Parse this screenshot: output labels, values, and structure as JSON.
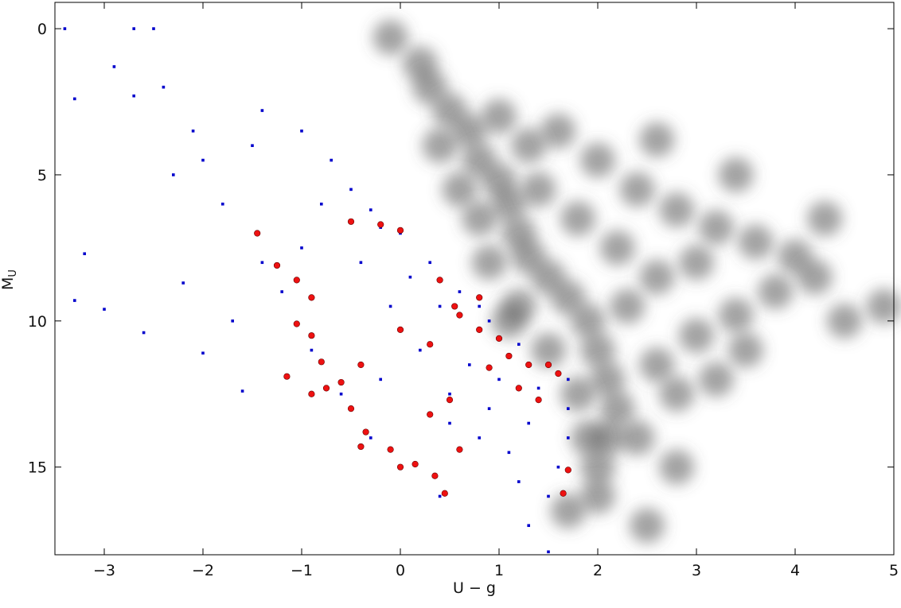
{
  "chart_data": {
    "type": "scatter",
    "xlabel": "U − g",
    "ylabel": "M",
    "ylabel_sub": "U",
    "xlim": [
      -3.5,
      5
    ],
    "ylim": [
      -0.9,
      18
    ],
    "y_inverted": true,
    "xticks": [
      {
        "value": -3,
        "label": "−3"
      },
      {
        "value": -2,
        "label": "−2"
      },
      {
        "value": -1,
        "label": "−1"
      },
      0,
      1,
      2,
      3,
      4,
      5
    ],
    "yticks": [
      0,
      5,
      10,
      15
    ],
    "series": [
      {
        "color": "#555555",
        "marker": "cloud",
        "x": [
          -0.1,
          0.2,
          0.3,
          0.5,
          0.7,
          0.8,
          1.0,
          1.1,
          1.2,
          1.3,
          1.5,
          1.7,
          1.9,
          2.0,
          2.1,
          2.2,
          2.1,
          2.0,
          2.0,
          1.6,
          2.0,
          2.4,
          2.8,
          3.2,
          3.6,
          4.0,
          4.2,
          3.8,
          3.4,
          3.0,
          2.6,
          2.8,
          2.4,
          1.4,
          1.8,
          2.2,
          2.6,
          3.0,
          0.6,
          0.9,
          1.2,
          1.5,
          1.8,
          1.9,
          0.4,
          1.0,
          1.3,
          2.6,
          3.4,
          4.3,
          4.5,
          4.9,
          3.2,
          2.8,
          1.7,
          2.5,
          1.1,
          0.8,
          2.3,
          3.5
        ],
        "y": [
          0.3,
          1.2,
          2,
          2.8,
          3.5,
          4.5,
          5.2,
          6,
          7,
          7.8,
          8.5,
          9.2,
          10,
          11,
          12,
          13,
          14,
          15,
          16,
          3.5,
          4.5,
          5.5,
          6.2,
          6.8,
          7.3,
          7.8,
          8.5,
          9,
          9.8,
          10.5,
          11.5,
          12.5,
          14,
          5.5,
          6.5,
          7.5,
          8.5,
          8,
          5.5,
          8,
          9.5,
          11,
          12.5,
          14,
          4,
          3,
          4,
          3.8,
          5,
          6.5,
          10,
          9.5,
          12,
          15,
          16.5,
          17,
          10,
          6.5,
          9.5,
          11
        ]
      },
      {
        "color": "#0000cc",
        "marker": "square",
        "x": [
          -0.7,
          -0.5,
          -0.3,
          0,
          0.3,
          0.6,
          0.9,
          1.2,
          1.5,
          1.7,
          1.7,
          1.7,
          1.6,
          1.5,
          1.2,
          0.8,
          0.5,
          0.2,
          -0.1,
          -0.4,
          1.0,
          1.3,
          0.7,
          0.4,
          -0.8,
          -1,
          -1.2,
          -0.9,
          -0.6,
          -0.3,
          0,
          0.4,
          -1.5,
          -2,
          -2.3,
          -1.8,
          -1.4,
          -2.1,
          -2.5,
          -2.7,
          -2.9,
          -2.7,
          -2.4,
          -3.3,
          -3.4,
          -3.2,
          -3.3,
          -3.0,
          -2.6,
          -2.2,
          -2.0,
          -1.7,
          -1.6,
          -0.2,
          0.9,
          1.3,
          1.5,
          0.5,
          1.1,
          -0.2,
          0.1,
          0.8,
          1.4,
          -1.4,
          -1.0
        ],
        "y": [
          4.5,
          5.5,
          6.2,
          7,
          8,
          9,
          10,
          10.8,
          11.5,
          12,
          13,
          14,
          15,
          16,
          15.5,
          14,
          12.5,
          11,
          9.5,
          8,
          12,
          13.5,
          11.5,
          9.5,
          6,
          7.5,
          9,
          11,
          12.5,
          14,
          15,
          16,
          4,
          4.5,
          5,
          6,
          8,
          3.5,
          0,
          0,
          1.3,
          2.3,
          2,
          2.4,
          0,
          7.7,
          9.3,
          9.6,
          10.4,
          8.7,
          11.1,
          10,
          12.4,
          12,
          13,
          17,
          17.9,
          13.5,
          14.5,
          6.8,
          8.5,
          9.5,
          12.3,
          2.8,
          3.5
        ]
      },
      {
        "color": "#ee1111",
        "marker": "circle",
        "x": [
          -1.45,
          -1.25,
          -1.05,
          -0.9,
          -1.05,
          -0.9,
          -0.8,
          -0.75,
          -0.9,
          -1.15,
          -0.6,
          -0.5,
          -0.35,
          -0.4,
          -0.1,
          0,
          0.15,
          0.35,
          0.45,
          0.6,
          0.3,
          0,
          0.3,
          0.4,
          0.55,
          0.8,
          1.0,
          1.1,
          1.3,
          1.5,
          1.6,
          0.9,
          1.2,
          0.6,
          0.8,
          -0.5,
          -0.2,
          0,
          1.65,
          1.7,
          0.5,
          1.4,
          -0.4
        ],
        "y": [
          7,
          8.1,
          8.6,
          9.2,
          10.1,
          10.5,
          11.4,
          12.3,
          12.5,
          11.9,
          12.1,
          13,
          13.8,
          14.3,
          14.4,
          15,
          14.9,
          15.3,
          15.9,
          14.4,
          13.2,
          10.3,
          10.8,
          8.6,
          9.5,
          10.3,
          10.6,
          11.2,
          11.5,
          11.5,
          11.8,
          11.6,
          12.3,
          9.8,
          9.2,
          6.6,
          6.7,
          6.9,
          15.9,
          15.1,
          12.7,
          12.7,
          11.5
        ]
      }
    ]
  }
}
